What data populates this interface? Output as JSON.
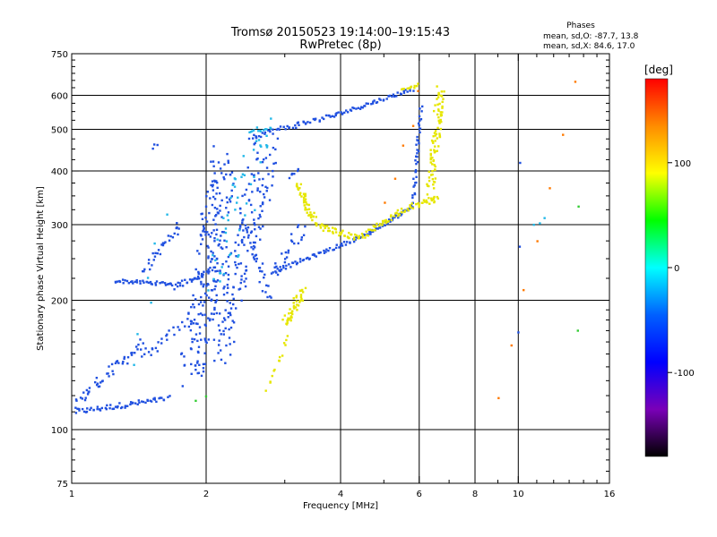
{
  "chart_data": {
    "type": "scatter",
    "title": "Tromsø 20150523 19:14:00–19:15:43",
    "subtitle": "RwPretec (8p)",
    "xlabel": "Frequency [MHz]",
    "ylabel": "Stationary phase Virtual Height [km]",
    "x_scale": "log",
    "y_scale": "log",
    "xlim": [
      1,
      16
    ],
    "ylim": [
      75,
      750
    ],
    "x_ticks": [
      1,
      2,
      4,
      6,
      8,
      10,
      16
    ],
    "x_tick_labels": [
      "1",
      "2",
      "4",
      "6",
      "8",
      "10",
      "16"
    ],
    "x_grid": [
      2,
      4,
      6,
      8,
      10
    ],
    "y_ticks": [
      75,
      100,
      200,
      300,
      400,
      500,
      600,
      750
    ],
    "y_tick_labels": [
      "75",
      "100",
      "200",
      "300",
      "400",
      "500",
      "600",
      "750"
    ],
    "y_grid": [
      100,
      200,
      300,
      400,
      500,
      600
    ],
    "grid": true,
    "info": {
      "heading": "Phases",
      "line1": "mean, sd,O: -87.7, 13.8",
      "line2": "mean, sd,X:  84.6, 17.0"
    },
    "colorbar": {
      "label": "[deg]",
      "range": [
        -180,
        180
      ],
      "ticks": [
        100,
        0,
        -100
      ],
      "tick_labels": [
        "100",
        "0",
        "-100"
      ],
      "colors": [
        "#ff0000",
        "#ff8c00",
        "#ffff00",
        "#00ff00",
        "#00ffff",
        "#0060ff",
        "#0000ff",
        "#7a00b8",
        "#000000"
      ]
    },
    "series": [
      {
        "phase_deg": -100,
        "color": "#2050e0",
        "segments": [
          {
            "x0": 1.02,
            "x1": 1.65,
            "y0": 110,
            "y1": 118,
            "n": 60,
            "jitter": 0.03
          },
          {
            "x0": 1.02,
            "x1": 1.45,
            "y0": 115,
            "y1": 160,
            "n": 50,
            "jitter": 0.06
          },
          {
            "x0": 1.45,
            "x1": 1.75,
            "y0": 145,
            "y1": 175,
            "n": 20,
            "jitter": 0.05
          },
          {
            "x0": 1.25,
            "x1": 1.7,
            "y0": 222,
            "y1": 218,
            "n": 40,
            "jitter": 0.02
          },
          {
            "x0": 1.7,
            "x1": 2.05,
            "y0": 215,
            "y1": 235,
            "n": 25,
            "jitter": 0.03
          },
          {
            "x0": 1.45,
            "x1": 1.75,
            "y0": 235,
            "y1": 300,
            "n": 30,
            "jitter": 0.05
          },
          {
            "x0": 1.85,
            "x1": 2.2,
            "y0": 140,
            "y1": 420,
            "n": 220,
            "jitter": 0.22
          },
          {
            "x0": 2.1,
            "x1": 2.75,
            "y0": 150,
            "y1": 450,
            "n": 180,
            "jitter": 0.22
          },
          {
            "x0": 2.5,
            "x1": 2.75,
            "y0": 300,
            "y1": 200,
            "n": 30,
            "jitter": 0.06
          },
          {
            "x0": 2.85,
            "x1": 3.3,
            "y0": 230,
            "y1": 300,
            "n": 25,
            "jitter": 0.08
          },
          {
            "x0": 2.5,
            "x1": 3.9,
            "y0": 480,
            "y1": 540,
            "n": 50,
            "jitter": 0.03
          },
          {
            "x0": 3.9,
            "x1": 5.8,
            "y0": 540,
            "y1": 620,
            "n": 50,
            "jitter": 0.02
          },
          {
            "x0": 2.8,
            "x1": 4.5,
            "y0": 232,
            "y1": 282,
            "n": 60,
            "jitter": 0.02
          },
          {
            "x0": 4.5,
            "x1": 5.8,
            "y0": 282,
            "y1": 330,
            "n": 50,
            "jitter": 0.02
          },
          {
            "x0": 5.8,
            "x1": 6.05,
            "y0": 330,
            "y1": 560,
            "n": 40,
            "jitter": 0.03
          },
          {
            "x0": 3.1,
            "x1": 3.2,
            "y0": 385,
            "y1": 400,
            "n": 6,
            "jitter": 0.03
          },
          {
            "x0": 1.52,
            "x1": 1.56,
            "y0": 455,
            "y1": 460,
            "n": 3,
            "jitter": 0.02
          },
          {
            "x0": 10.0,
            "x1": 10.1,
            "y0": 170,
            "y1": 420,
            "n": 3,
            "jitter": 0.02
          }
        ]
      },
      {
        "phase_deg": -30,
        "color": "#22b8e8",
        "segments": [
          {
            "x0": 2.1,
            "x1": 2.7,
            "y0": 220,
            "y1": 500,
            "n": 50,
            "jitter": 0.2
          },
          {
            "x0": 2.5,
            "x1": 2.8,
            "y0": 490,
            "y1": 510,
            "n": 12,
            "jitter": 0.03
          },
          {
            "x0": 1.4,
            "x1": 1.6,
            "y0": 140,
            "y1": 330,
            "n": 6,
            "jitter": 0.1
          },
          {
            "x0": 10.8,
            "x1": 11.5,
            "y0": 300,
            "y1": 310,
            "n": 3,
            "jitter": 0.02
          }
        ]
      },
      {
        "phase_deg": 80,
        "color": "#e6e600",
        "segments": [
          {
            "x0": 3.2,
            "x1": 3.5,
            "y0": 370,
            "y1": 305,
            "n": 40,
            "jitter": 0.05
          },
          {
            "x0": 3.5,
            "x1": 4.4,
            "y0": 300,
            "y1": 278,
            "n": 40,
            "jitter": 0.03
          },
          {
            "x0": 4.4,
            "x1": 5.5,
            "y0": 278,
            "y1": 325,
            "n": 40,
            "jitter": 0.03
          },
          {
            "x0": 5.5,
            "x1": 6.6,
            "y0": 325,
            "y1": 345,
            "n": 30,
            "jitter": 0.03
          },
          {
            "x0": 6.35,
            "x1": 6.7,
            "y0": 350,
            "y1": 630,
            "n": 90,
            "jitter": 0.07
          },
          {
            "x0": 3.0,
            "x1": 3.3,
            "y0": 175,
            "y1": 210,
            "n": 45,
            "jitter": 0.06
          },
          {
            "x0": 2.75,
            "x1": 3.05,
            "y0": 125,
            "y1": 165,
            "n": 14,
            "jitter": 0.04
          },
          {
            "x0": 5.5,
            "x1": 5.95,
            "y0": 615,
            "y1": 635,
            "n": 12,
            "jitter": 0.02
          }
        ]
      },
      {
        "phase_deg": 140,
        "color": "#ff7a00",
        "segments": [
          {
            "x0": 5.0,
            "x1": 6.0,
            "y0": 340,
            "y1": 600,
            "n": 5,
            "jitter": 0.05
          },
          {
            "x0": 9.0,
            "x1": 13.5,
            "y0": 120,
            "y1": 640,
            "n": 7,
            "jitter": 0.03
          }
        ]
      },
      {
        "phase_deg": 10,
        "color": "#33cc33",
        "segments": [
          {
            "x0": 1.9,
            "x1": 2.0,
            "y0": 117,
            "y1": 119,
            "n": 2,
            "jitter": 0.02
          },
          {
            "x0": 13.6,
            "x1": 13.7,
            "y0": 170,
            "y1": 330,
            "n": 2,
            "jitter": 0.02
          }
        ]
      }
    ]
  }
}
